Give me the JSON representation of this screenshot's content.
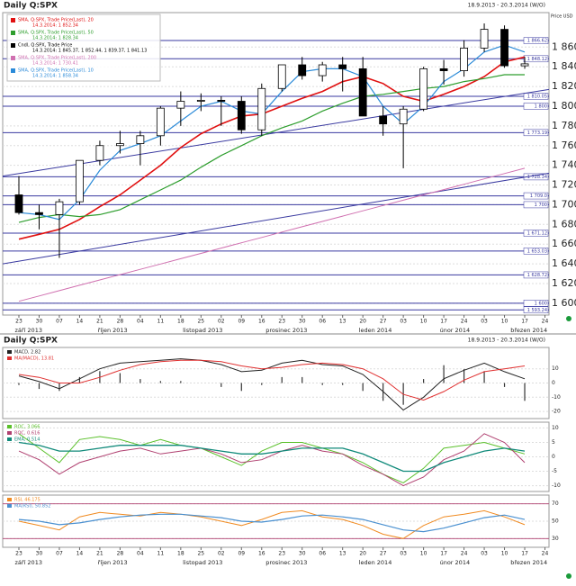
{
  "chart_data": [
    {
      "type": "candlestick",
      "title": "Daily Q:SPX",
      "subtitle": "18.9.2013 - 20.3.2014 (W/O)",
      "ylabel": "Price USD",
      "x": [
        0,
        1,
        2,
        3,
        4,
        5,
        6,
        7,
        8,
        9,
        10,
        11,
        12,
        13,
        14,
        15,
        16,
        17,
        18,
        19,
        20,
        21,
        22,
        23,
        24,
        25
      ],
      "xlim": [
        -0.8,
        26.2
      ],
      "xticks": [
        {
          "value": 0,
          "label": "23"
        },
        {
          "value": 1,
          "label": "30"
        },
        {
          "value": 2,
          "label": "07"
        },
        {
          "value": 3,
          "label": "14"
        },
        {
          "value": 4,
          "label": "21"
        },
        {
          "value": 5,
          "label": "28"
        },
        {
          "value": 6,
          "label": "04"
        },
        {
          "value": 7,
          "label": "11"
        },
        {
          "value": 8,
          "label": "18"
        },
        {
          "value": 9,
          "label": "25"
        },
        {
          "value": 10,
          "label": "02"
        },
        {
          "value": 11,
          "label": "09"
        },
        {
          "value": 12,
          "label": "16"
        },
        {
          "value": 13,
          "label": "23"
        },
        {
          "value": 14,
          "label": "30"
        },
        {
          "value": 15,
          "label": "06"
        },
        {
          "value": 16,
          "label": "13"
        },
        {
          "value": 17,
          "label": "20"
        },
        {
          "value": 18,
          "label": "27"
        },
        {
          "value": 19,
          "label": "03"
        },
        {
          "value": 20,
          "label": "10"
        },
        {
          "value": 21,
          "label": "17"
        },
        {
          "value": 22,
          "label": "24"
        },
        {
          "value": 23,
          "label": "03"
        },
        {
          "value": 24,
          "label": "10"
        },
        {
          "value": 25,
          "label": "17"
        },
        {
          "value": 26,
          "label": "24"
        }
      ],
      "month_ticks": [
        {
          "value": -0.2,
          "label": "září 2013"
        },
        {
          "value": 3.9,
          "label": "říjen 2013"
        },
        {
          "value": 8.1,
          "label": "listopad 2013"
        },
        {
          "value": 12.2,
          "label": "prosinec 2013"
        },
        {
          "value": 16.8,
          "label": "leden 2014"
        },
        {
          "value": 20.8,
          "label": "únor 2014"
        },
        {
          "value": 24.3,
          "label": "březen 2014"
        }
      ],
      "ylim": [
        1588,
        1895
      ],
      "yticks": [
        {
          "value": 1600,
          "label": "1 600"
        },
        {
          "value": 1620,
          "label": "1 620"
        },
        {
          "value": 1640,
          "label": "1 640"
        },
        {
          "value": 1660,
          "label": "1 660"
        },
        {
          "value": 1680,
          "label": "1 680"
        },
        {
          "value": 1700,
          "label": "1 700"
        },
        {
          "value": 1720,
          "label": "1 720"
        },
        {
          "value": 1740,
          "label": "1 740"
        },
        {
          "value": 1760,
          "label": "1 760"
        },
        {
          "value": 1780,
          "label": "1 780"
        },
        {
          "value": 1800,
          "label": "1 800"
        },
        {
          "value": 1820,
          "label": "1 820"
        },
        {
          "value": 1840,
          "label": "1 840"
        },
        {
          "value": 1860,
          "label": "1 860"
        }
      ],
      "grid": true,
      "candles": {
        "name": "Cndl, Q:SPX, Trade Price",
        "last": "14.3.2014: 1 845.37, 1 852.44, 1 839.37, 1 841.13",
        "open": [
          1710,
          1692,
          1690,
          1703,
          1745,
          1760,
          1762,
          1770,
          1798,
          1805,
          1806,
          1805,
          1776,
          1818,
          1842,
          1831,
          1842,
          1838,
          1790,
          1782,
          1797,
          1838,
          1836,
          1859,
          1878,
          1841
        ],
        "high": [
          1729,
          1700,
          1706,
          1745,
          1765,
          1775,
          1775,
          1800,
          1815,
          1813,
          1810,
          1810,
          1823,
          1842,
          1850,
          1845,
          1850,
          1850,
          1800,
          1800,
          1840,
          1847,
          1867,
          1884,
          1882,
          1850
        ],
        "low": [
          1690,
          1675,
          1646,
          1700,
          1740,
          1752,
          1740,
          1760,
          1780,
          1795,
          1780,
          1772,
          1770,
          1815,
          1827,
          1825,
          1815,
          1790,
          1770,
          1737,
          1795,
          1822,
          1830,
          1855,
          1839,
          1838
        ],
        "close": [
          1692,
          1690,
          1703,
          1745,
          1760,
          1762,
          1770,
          1798,
          1805,
          1806,
          1805,
          1776,
          1818,
          1842,
          1831,
          1842,
          1838,
          1790,
          1782,
          1797,
          1838,
          1836,
          1859,
          1878,
          1841,
          1843
        ]
      },
      "series": [
        {
          "name": "SMA, Q:SPX, Trade Price(Last), 20",
          "last": "14.3.2014: 1 852.34",
          "color": "#e01010",
          "width": 1.6,
          "values": [
            1665,
            1670,
            1675,
            1685,
            1698,
            1710,
            1725,
            1740,
            1758,
            1772,
            1782,
            1790,
            1792,
            1800,
            1808,
            1815,
            1825,
            1830,
            1823,
            1810,
            1805,
            1812,
            1820,
            1830,
            1845,
            1850
          ]
        },
        {
          "name": "SMA, Q:SPX, Trade Price(Last), 50",
          "last": "14.3.2014: 1 828.34",
          "color": "#2e9e2e",
          "width": 1.2,
          "values": [
            1682,
            1687,
            1690,
            1688,
            1690,
            1695,
            1705,
            1715,
            1725,
            1738,
            1750,
            1760,
            1770,
            1778,
            1785,
            1795,
            1803,
            1810,
            1812,
            1815,
            1818,
            1820,
            1825,
            1828,
            1832,
            1832
          ]
        },
        {
          "name": "SMA, Q:SPX, Trade Price(Last), 200",
          "last": "14.3.2014: 1 730.41",
          "color": "#d070b0",
          "width": 1,
          "values": [
            1602,
            1607.4,
            1612.8,
            1618.2,
            1623.6,
            1629,
            1634.4,
            1639.8,
            1645.2,
            1650.6,
            1656,
            1661.4,
            1666.8,
            1672.2,
            1677.6,
            1683,
            1688.4,
            1693.8,
            1699.2,
            1704.6,
            1710,
            1715.4,
            1720.8,
            1726.2,
            1731.6,
            1737
          ]
        },
        {
          "name": "SMA, Q:SPX, Trade Price(Last), 10",
          "last": "14.3.2014: 1 858.34",
          "color": "#2a8ad8",
          "width": 1.2,
          "values": [
            1692,
            1690,
            1685,
            1705,
            1735,
            1755,
            1762,
            1770,
            1785,
            1800,
            1805,
            1795,
            1792,
            1815,
            1835,
            1838,
            1838,
            1830,
            1800,
            1782,
            1800,
            1825,
            1838,
            1855,
            1862,
            1855
          ]
        }
      ],
      "trendlines": [
        {
          "color": "#3a3aa0",
          "x": [
            -0.8,
            26.2
          ],
          "y": [
            1729,
            1817
          ]
        },
        {
          "color": "#3a3aa0",
          "x": [
            -0.8,
            26.2
          ],
          "y": [
            1640,
            1732
          ]
        }
      ],
      "levels": [
        {
          "value": 1866.62,
          "label": "1 866.62"
        },
        {
          "value": 1848.12,
          "label": "1 848.12"
        },
        {
          "value": 1810.05,
          "label": "1 810.05"
        },
        {
          "value": 1800,
          "label": "1 800"
        },
        {
          "value": 1773.19,
          "label": "1 773.19"
        },
        {
          "value": 1728.34,
          "label": "1 728.34"
        },
        {
          "value": 1709,
          "label": "1 709.0"
        },
        {
          "value": 1700,
          "label": "1 700"
        },
        {
          "value": 1671.12,
          "label": "1 671.12"
        },
        {
          "value": 1653.03,
          "label": "1 653.03"
        },
        {
          "value": 1628.72,
          "label": "1 628.72"
        },
        {
          "value": 1600,
          "label": "1 600"
        },
        {
          "value": 1593.24,
          "label": "1 593.24"
        }
      ]
    },
    {
      "type": "line",
      "title": "Daily Q:SPX",
      "subtitle": "18.9.2013 - 20.3.2014 (W/O)",
      "x": [
        0,
        1,
        2,
        3,
        4,
        5,
        6,
        7,
        8,
        9,
        10,
        11,
        12,
        13,
        14,
        15,
        16,
        17,
        18,
        19,
        20,
        21,
        22,
        23,
        24,
        25
      ],
      "xlim": [
        -0.8,
        26.2
      ],
      "ylim": [
        -25,
        25
      ],
      "yticks": [
        -20,
        -10,
        0,
        10
      ],
      "grid": true,
      "series": [
        {
          "name": "MACD, 2.82",
          "color": "#222222",
          "width": 1,
          "values": [
            5,
            1,
            -4,
            3,
            10,
            14,
            15,
            16,
            17,
            16,
            13,
            8,
            9,
            14,
            16,
            13,
            12,
            6,
            -6,
            -19,
            -10,
            3,
            9,
            14,
            8,
            3
          ]
        },
        {
          "name": "MA(MACD), 13.81",
          "color": "#e03030",
          "width": 1,
          "values": [
            6,
            4,
            0,
            0,
            4,
            9,
            13,
            15,
            16,
            16,
            15,
            12,
            10,
            11,
            13,
            14,
            13,
            10,
            3,
            -8,
            -12,
            -6,
            2,
            8,
            10,
            12
          ]
        }
      ],
      "histogram": [
        -1,
        -3,
        -4,
        3,
        6,
        5,
        2,
        1,
        1,
        0,
        -2,
        -4,
        -1,
        3,
        3,
        -1,
        -1,
        -4,
        -9,
        -11,
        2,
        9,
        7,
        6,
        -2,
        -9
      ]
    },
    {
      "type": "line",
      "x": [
        0,
        1,
        2,
        3,
        4,
        5,
        6,
        7,
        8,
        9,
        10,
        11,
        12,
        13,
        14,
        15,
        16,
        17,
        18,
        19,
        20,
        21,
        22,
        23,
        24,
        25
      ],
      "xlim": [
        -0.8,
        26.2
      ],
      "ylim": [
        -12,
        12
      ],
      "yticks": [
        -10,
        -5,
        0,
        5,
        10
      ],
      "grid": true,
      "series": [
        {
          "name": "ROC, 3.066",
          "color": "#5ac02a",
          "width": 1,
          "values": [
            8,
            3,
            -2,
            6,
            7,
            6,
            4,
            6,
            4,
            3,
            0,
            -3,
            2,
            5,
            5,
            3,
            1,
            -2,
            -6,
            -9,
            -4,
            3,
            4,
            5,
            3,
            1
          ]
        },
        {
          "name": "ROC, 0.616",
          "color": "#b04070",
          "width": 1,
          "values": [
            2,
            -1,
            -6,
            -2,
            0,
            2,
            3,
            1,
            2,
            3,
            1,
            -2,
            -1,
            2,
            4,
            2,
            1,
            -3,
            -6,
            -10,
            -7,
            -1,
            2,
            8,
            5,
            -2
          ]
        },
        {
          "name": "EMA, 0.514",
          "color": "#108a7a",
          "width": 1.3,
          "values": [
            5,
            4,
            2,
            2,
            3,
            4,
            4,
            4,
            4,
            3,
            2,
            1,
            1,
            2,
            3,
            3,
            3,
            1,
            -2,
            -5,
            -5,
            -2,
            0,
            2,
            3,
            2
          ]
        }
      ]
    },
    {
      "type": "line",
      "x": [
        0,
        1,
        2,
        3,
        4,
        5,
        6,
        7,
        8,
        9,
        10,
        11,
        12,
        13,
        14,
        15,
        16,
        17,
        18,
        19,
        20,
        21,
        22,
        23,
        24,
        25
      ],
      "xlim": [
        -0.8,
        26.2
      ],
      "xticks": [
        {
          "value": 0,
          "label": "23"
        },
        {
          "value": 1,
          "label": "30"
        },
        {
          "value": 2,
          "label": "07"
        },
        {
          "value": 3,
          "label": "14"
        },
        {
          "value": 4,
          "label": "21"
        },
        {
          "value": 5,
          "label": "28"
        },
        {
          "value": 6,
          "label": "04"
        },
        {
          "value": 7,
          "label": "11"
        },
        {
          "value": 8,
          "label": "18"
        },
        {
          "value": 9,
          "label": "25"
        },
        {
          "value": 10,
          "label": "02"
        },
        {
          "value": 11,
          "label": "09"
        },
        {
          "value": 12,
          "label": "16"
        },
        {
          "value": 13,
          "label": "23"
        },
        {
          "value": 14,
          "label": "30"
        },
        {
          "value": 15,
          "label": "06"
        },
        {
          "value": 16,
          "label": "13"
        },
        {
          "value": 17,
          "label": "20"
        },
        {
          "value": 18,
          "label": "27"
        },
        {
          "value": 19,
          "label": "03"
        },
        {
          "value": 20,
          "label": "10"
        },
        {
          "value": 21,
          "label": "17"
        },
        {
          "value": 22,
          "label": "24"
        },
        {
          "value": 23,
          "label": "03"
        },
        {
          "value": 24,
          "label": "10"
        },
        {
          "value": 25,
          "label": "17"
        },
        {
          "value": 26,
          "label": "24"
        }
      ],
      "month_ticks": [
        {
          "value": -0.2,
          "label": "září 2013"
        },
        {
          "value": 3.9,
          "label": "říjen 2013"
        },
        {
          "value": 8.1,
          "label": "listopad 2013"
        },
        {
          "value": 12.2,
          "label": "prosinec 2013"
        },
        {
          "value": 16.8,
          "label": "leden 2014"
        },
        {
          "value": 20.8,
          "label": "únor 2014"
        },
        {
          "value": 24.3,
          "label": "březen 2014"
        }
      ],
      "ylim": [
        20,
        80
      ],
      "yticks": [
        30,
        50,
        70
      ],
      "grid": true,
      "levels": [
        {
          "value": 70
        },
        {
          "value": 30
        }
      ],
      "series": [
        {
          "name": "RSI, 46.175",
          "color": "#f08a20",
          "width": 1,
          "values": [
            50,
            45,
            40,
            55,
            60,
            58,
            56,
            60,
            58,
            55,
            50,
            45,
            52,
            60,
            62,
            55,
            52,
            45,
            35,
            30,
            45,
            55,
            58,
            62,
            55,
            46
          ]
        },
        {
          "name": "MA(RSI), 50.852",
          "color": "#4a90d0",
          "width": 1.2,
          "values": [
            52,
            50,
            46,
            48,
            52,
            55,
            57,
            58,
            58,
            56,
            54,
            50,
            49,
            52,
            56,
            57,
            55,
            52,
            46,
            40,
            38,
            42,
            48,
            54,
            57,
            52
          ]
        }
      ]
    }
  ]
}
